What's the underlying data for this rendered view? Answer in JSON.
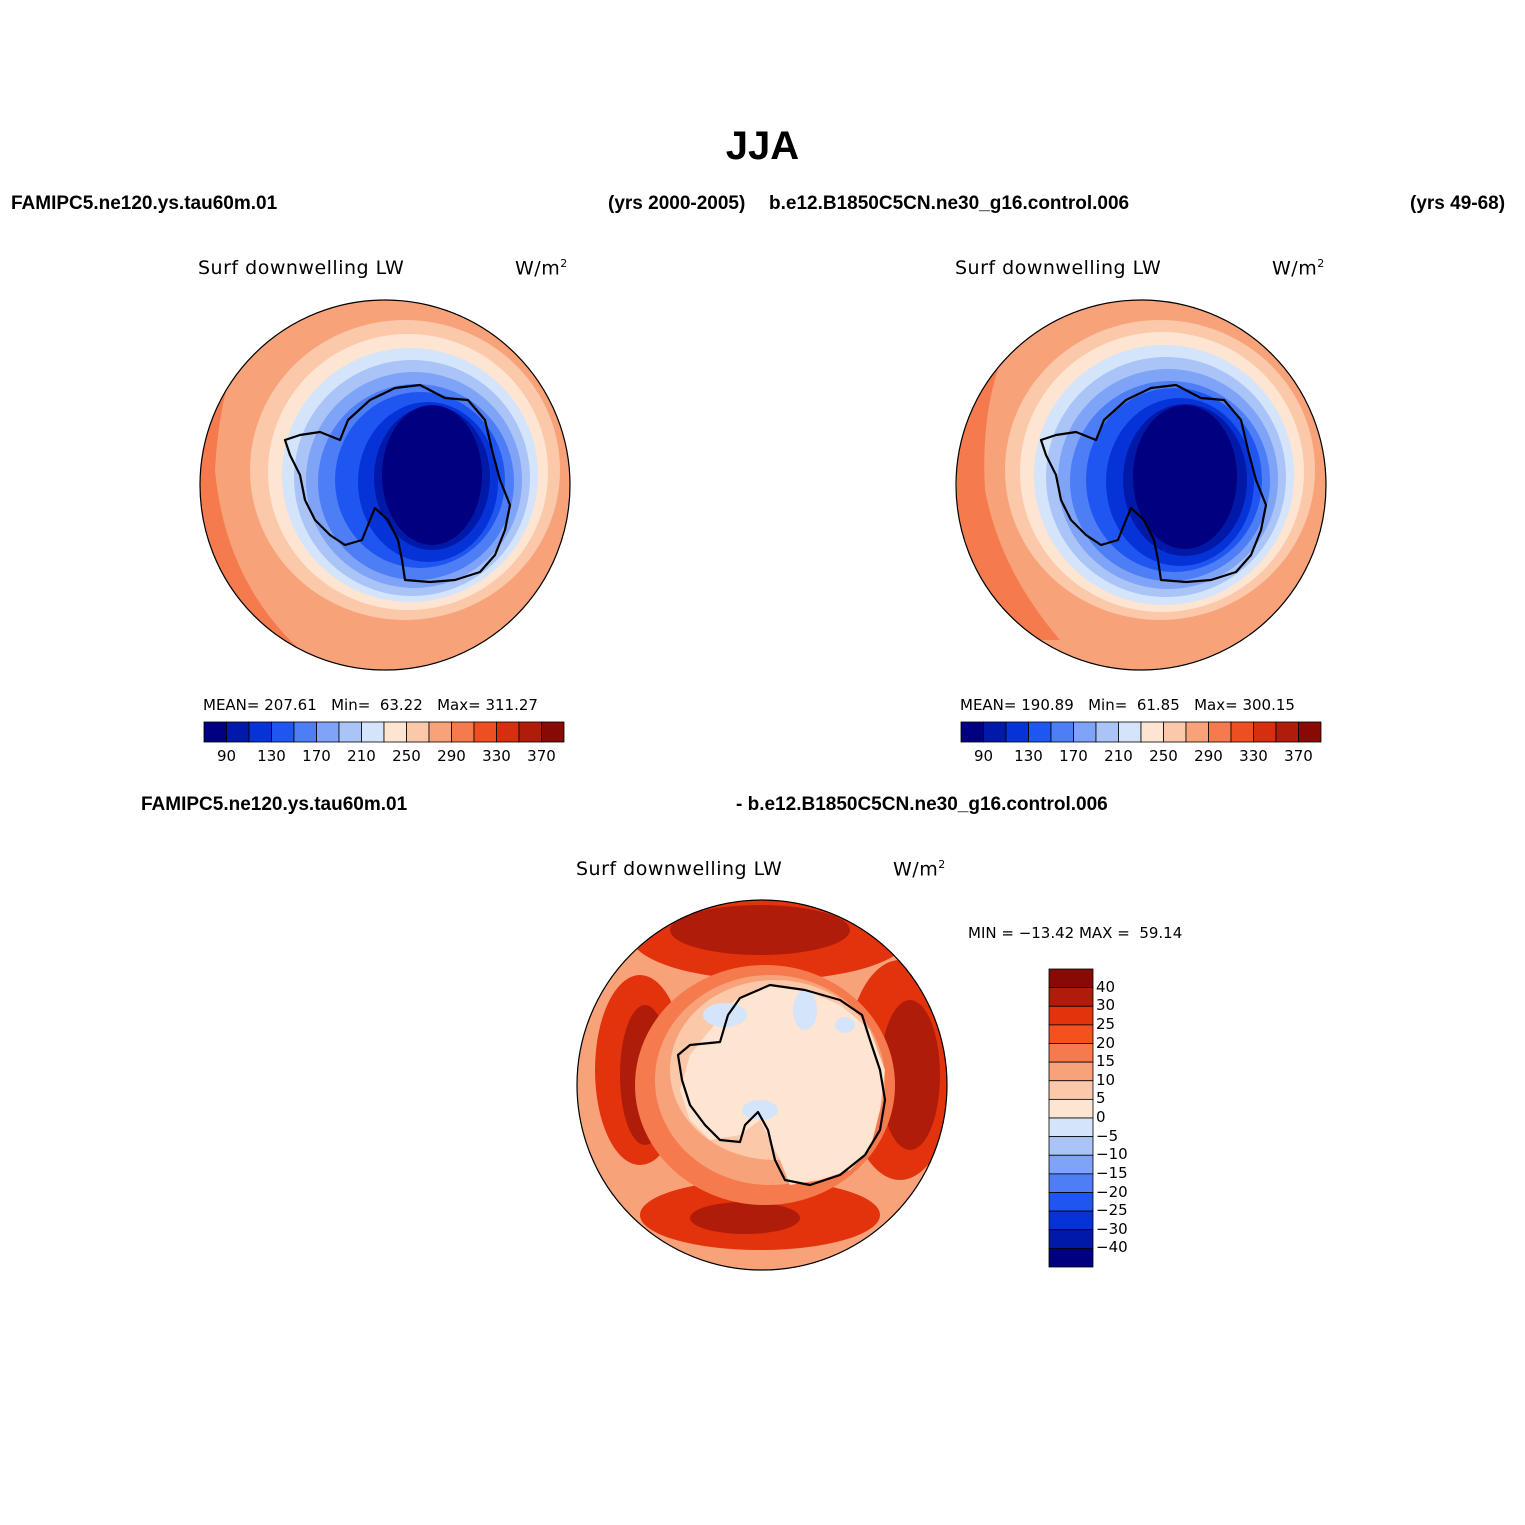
{
  "page_title": "JJA",
  "header": {
    "left_case": "FAMIPC5.ne120.ys.tau60m.01",
    "left_years": "(yrs 2000-2005)",
    "right_case": "b.e12.B1850C5CN.ne30_g16.control.006",
    "right_years": "(yrs 49-68)"
  },
  "diff_header": {
    "left": "FAMIPC5.ne120.ys.tau60m.01",
    "right": "- b.e12.B1850C5CN.ne30_g16.control.006"
  },
  "panels": [
    {
      "title": "Surf downwelling LW",
      "units": "W/m",
      "units_sup": "2",
      "stats": {
        "mean_label": "MEAN=",
        "mean": "207.61",
        "min_label": "Min=",
        "min": "63.22",
        "max_label": "Max=",
        "max": "311.27"
      }
    },
    {
      "title": "Surf downwelling LW",
      "units": "W/m",
      "units_sup": "2",
      "stats": {
        "mean_label": "MEAN=",
        "mean": "190.89",
        "min_label": "Min=",
        "min": "61.85",
        "max_label": "Max=",
        "max": "300.15"
      }
    },
    {
      "title": "Surf downwelling LW",
      "units": "W/m",
      "units_sup": "2",
      "stats_text": "MIN = −13.42 MAX =  59.14"
    }
  ],
  "abs_colorbar": {
    "colors": [
      "#000080",
      "#0019a8",
      "#0533d8",
      "#1f55f0",
      "#4d7ef5",
      "#7fa4f7",
      "#aac4f8",
      "#d4e4fb",
      "#fde5d2",
      "#fbc8aa",
      "#f8a27a",
      "#f57b4e",
      "#ee4f22",
      "#d62f0f",
      "#b01c0a",
      "#870a05"
    ],
    "labels": [
      "90",
      "130",
      "170",
      "210",
      "250",
      "290",
      "330",
      "370"
    ]
  },
  "diff_colorbar": {
    "colors": [
      "#870a05",
      "#b01c0a",
      "#e2330d",
      "#f5511f",
      "#f57b4e",
      "#f8a27a",
      "#fbc8aa",
      "#fde5d2",
      "#d4e4fb",
      "#aac4f8",
      "#7fa4f7",
      "#4d7ef5",
      "#1f55f0",
      "#0533d8",
      "#0019a8",
      "#000080"
    ],
    "labels": [
      "40",
      "30",
      "25",
      "20",
      "15",
      "10",
      "5",
      "0",
      "−5",
      "−10",
      "−15",
      "−20",
      "−25",
      "−30",
      "−40"
    ]
  }
}
